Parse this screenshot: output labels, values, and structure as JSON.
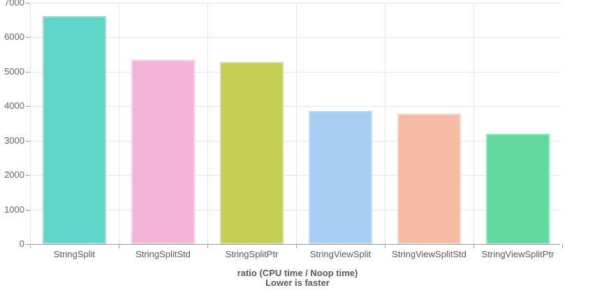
{
  "chart_data": {
    "type": "bar",
    "title": "",
    "categories": [
      "StringSplit",
      "StringSplitStd",
      "StringSplitPtr",
      "StringViewSplit",
      "StringViewSplitStd",
      "StringViewSplitPtr"
    ],
    "values": [
      6610,
      5340,
      5275,
      3865,
      3790,
      3195
    ],
    "bar_colors": [
      "#5FD6C8",
      "#F4B3D8",
      "#C4CE53",
      "#A6CDF2",
      "#F6BBA4",
      "#63D89E"
    ],
    "bar_border_colors": [
      "#92E3D8",
      "#F8CEE6",
      "#D6DD87",
      "#C3DCF7",
      "#FAD4C4",
      "#93E4BC"
    ],
    "xlabel_line1": "ratio (CPU time / Noop time)",
    "xlabel_line2": "Lower is faster",
    "ylabel": "",
    "ylim": [
      0,
      7000
    ],
    "ytick_step": 1000,
    "yticks": [
      "0",
      "1000",
      "2000",
      "3000",
      "4000",
      "5000",
      "6000",
      "7000"
    ],
    "grid": true,
    "legend_position": "none",
    "colors": {
      "gridline": "#e6e6e6",
      "axis_line": "#9e9e9e",
      "tick_text": "#666666",
      "axis_title_text": "#595959",
      "background": "#ffffff"
    }
  }
}
